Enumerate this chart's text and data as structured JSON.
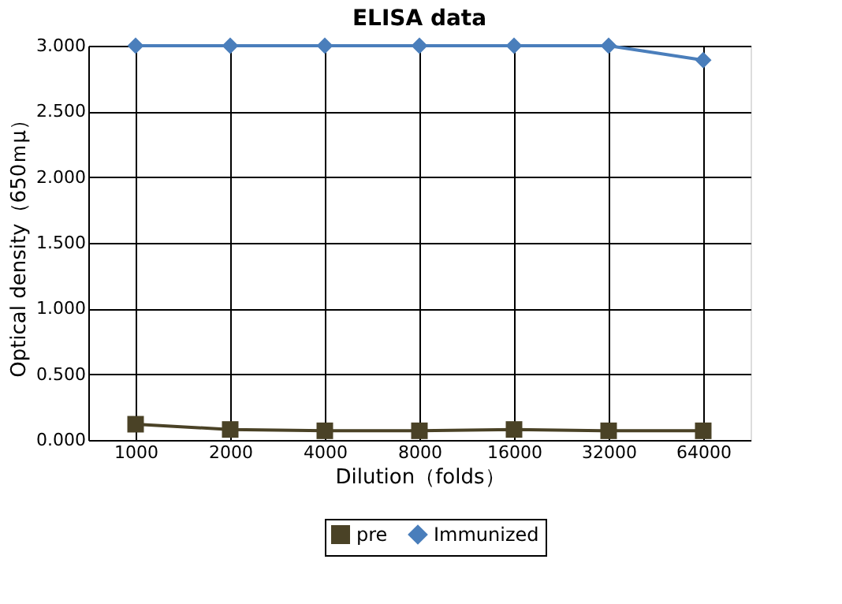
{
  "chart_data": {
    "type": "line",
    "title": "ELISA data",
    "xlabel": "Dilution（folds）",
    "ylabel": "Optical density（650ｍμ）",
    "categories": [
      "1000",
      "2000",
      "4000",
      "8000",
      "16000",
      "32000",
      "64000"
    ],
    "series": [
      {
        "name": "pre",
        "color": "#4a4226",
        "marker": "square",
        "values": [
          0.12,
          0.08,
          0.07,
          0.07,
          0.08,
          0.07,
          0.07
        ]
      },
      {
        "name": "Immunized",
        "color": "#4a7ebb",
        "marker": "diamond",
        "values": [
          3.0,
          3.0,
          3.0,
          3.0,
          3.0,
          3.0,
          2.89
        ]
      }
    ],
    "ylim": [
      0,
      3
    ],
    "yticks": [
      {
        "value": 0,
        "label": "0.000"
      },
      {
        "value": 0.5,
        "label": "0.500"
      },
      {
        "value": 1,
        "label": "1.000"
      },
      {
        "value": 1.5,
        "label": "1.500"
      },
      {
        "value": 2,
        "label": "2.000"
      },
      {
        "value": 2.5,
        "label": "2.500"
      },
      {
        "value": 3,
        "label": "3.000"
      }
    ],
    "grid": true,
    "legend": "bottom",
    "line_style": "solid"
  }
}
